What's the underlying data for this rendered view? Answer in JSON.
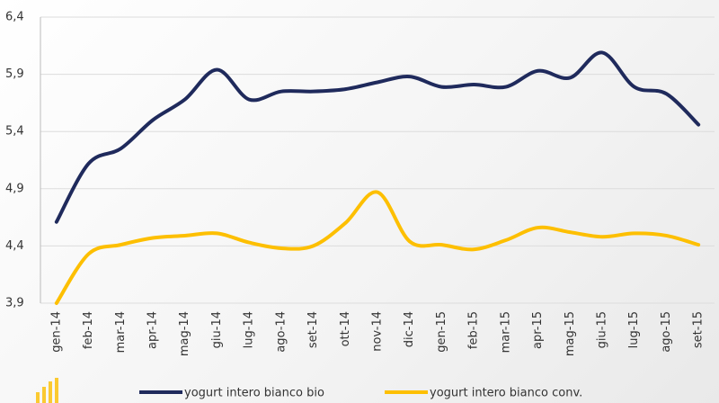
{
  "chart_data": {
    "type": "line",
    "categories": [
      "gen-14",
      "feb-14",
      "mar-14",
      "apr-14",
      "mag-14",
      "giu-14",
      "lug-14",
      "ago-14",
      "set-14",
      "ott-14",
      "nov-14",
      "dic-14",
      "gen-15",
      "feb-15",
      "mar-15",
      "apr-15",
      "mag-15",
      "giu-15",
      "lug-15",
      "ago-15",
      "set-15"
    ],
    "series": [
      {
        "name": "yogurt intero bianco bio",
        "color": "#1f2a5c",
        "values": [
          4.61,
          5.12,
          5.25,
          5.5,
          5.68,
          5.94,
          5.68,
          5.75,
          5.75,
          5.77,
          5.83,
          5.88,
          5.79,
          5.81,
          5.79,
          5.93,
          5.87,
          6.09,
          5.79,
          5.73,
          5.46
        ]
      },
      {
        "name": "yogurt intero bianco conv.",
        "color": "#fdbf00",
        "values": [
          3.9,
          4.33,
          4.41,
          4.47,
          4.49,
          4.51,
          4.43,
          4.38,
          4.4,
          4.6,
          4.87,
          4.44,
          4.41,
          4.37,
          4.45,
          4.56,
          4.52,
          4.48,
          4.51,
          4.49,
          4.41
        ]
      }
    ],
    "ylim": [
      3.9,
      6.4
    ],
    "yticks": [
      {
        "value": 3.9,
        "label": "3,9"
      },
      {
        "value": 4.4,
        "label": "4,4"
      },
      {
        "value": 4.9,
        "label": "4,9"
      },
      {
        "value": 5.4,
        "label": "5,4"
      },
      {
        "value": 5.9,
        "label": "5,9"
      },
      {
        "value": 6.4,
        "label": "6,4"
      }
    ],
    "grid": true,
    "legend": "bottom"
  }
}
